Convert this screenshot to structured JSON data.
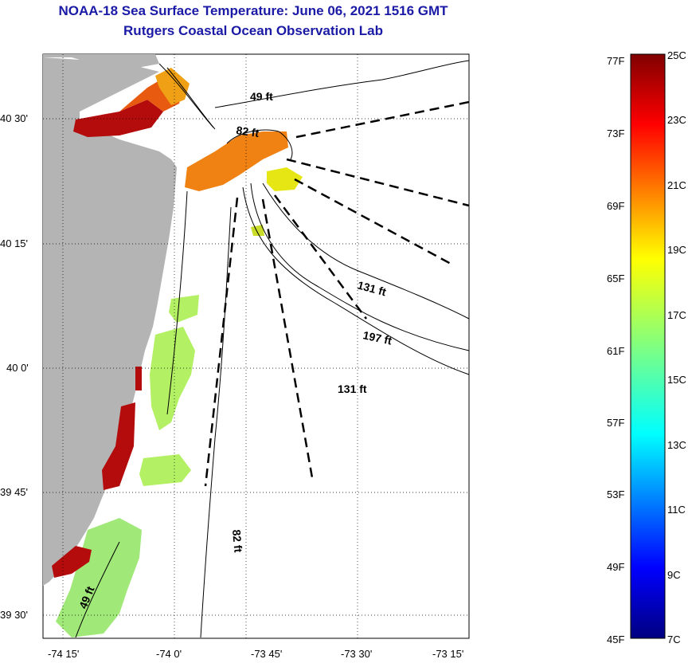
{
  "header": {
    "title": "NOAA-18 Sea Surface Temperature:  June 06, 2021 1516 GMT",
    "subtitle": "Rutgers Coastal Ocean Observation Lab"
  },
  "map": {
    "lon_ticks": [
      "-74 15'",
      "-74 0'",
      "-73 45'",
      "-73 30'",
      "-73 15'"
    ],
    "lat_ticks": [
      "40 30'",
      "40 15'",
      "40 0'",
      "39 45'",
      "39 30'"
    ],
    "isobath_labels": [
      "49 ft",
      "82 ft",
      "131 ft",
      "197 ft",
      "131 ft",
      "82 ft",
      "49 ft"
    ]
  },
  "colorbar": {
    "fahrenheit_labels": [
      "77F",
      "73F",
      "69F",
      "65F",
      "61F",
      "57F",
      "53F",
      "49F",
      "45F"
    ],
    "celsius_labels": [
      "25C",
      "23C",
      "21C",
      "19C",
      "17C",
      "15C",
      "13C",
      "11C",
      "9C",
      "7C"
    ],
    "range_c": [
      7,
      25
    ]
  },
  "colors": {
    "title": "#1a1aa6",
    "land": "#b4b4b4",
    "warm": "#b40c0c",
    "orange": "#f08214",
    "yellow": "#e6e614",
    "green": "#b4f064"
  }
}
